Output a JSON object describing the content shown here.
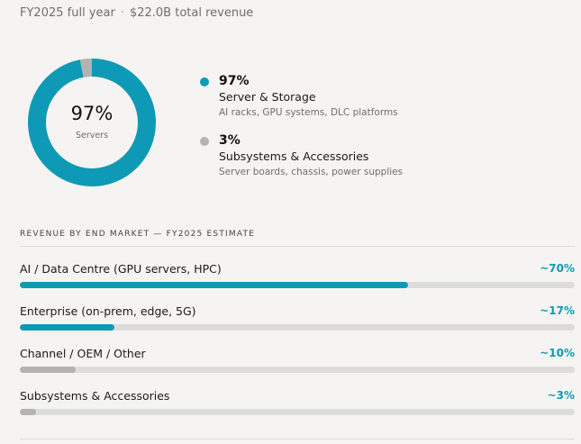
{
  "header": {
    "period": "FY2025 full year",
    "separator": "·",
    "total": "$22.0B total revenue"
  },
  "colors": {
    "primary": "#0e9ab6",
    "secondary": "#b3b3b3",
    "remainder": "#d8d8d6"
  },
  "donut": {
    "center_value": "97%",
    "center_label": "Servers"
  },
  "legend": [
    {
      "pct": "97%",
      "name": "Server & Storage",
      "desc": "AI racks, GPU systems, DLC platforms",
      "color": "#0e9ab6"
    },
    {
      "pct": "3%",
      "name": "Subsystems & Accessories",
      "desc": "Server boards, chassis, power supplies",
      "color": "#b3b3b3"
    }
  ],
  "end_market": {
    "title": "REVENUE BY END MARKET — FY2025 ESTIMATE",
    "rows": [
      {
        "label": "AI / Data Centre (GPU servers, HPC)",
        "pct": "~70%",
        "value": 70,
        "color": "#0e9ab6"
      },
      {
        "label": "Enterprise (on-prem, edge, 5G)",
        "pct": "~17%",
        "value": 17,
        "color": "#0e9ab6"
      },
      {
        "label": "Channel / OEM / Other",
        "pct": "~10%",
        "value": 10,
        "color": "#b3b3b3"
      },
      {
        "label": "Subsystems & Accessories",
        "pct": "~3%",
        "value": 3,
        "color": "#b3b3b3"
      }
    ]
  },
  "chart_data": {
    "type": "pie",
    "categories": [
      "Server & Storage",
      "Subsystems & Accessories"
    ],
    "values": [
      97,
      3
    ]
  }
}
